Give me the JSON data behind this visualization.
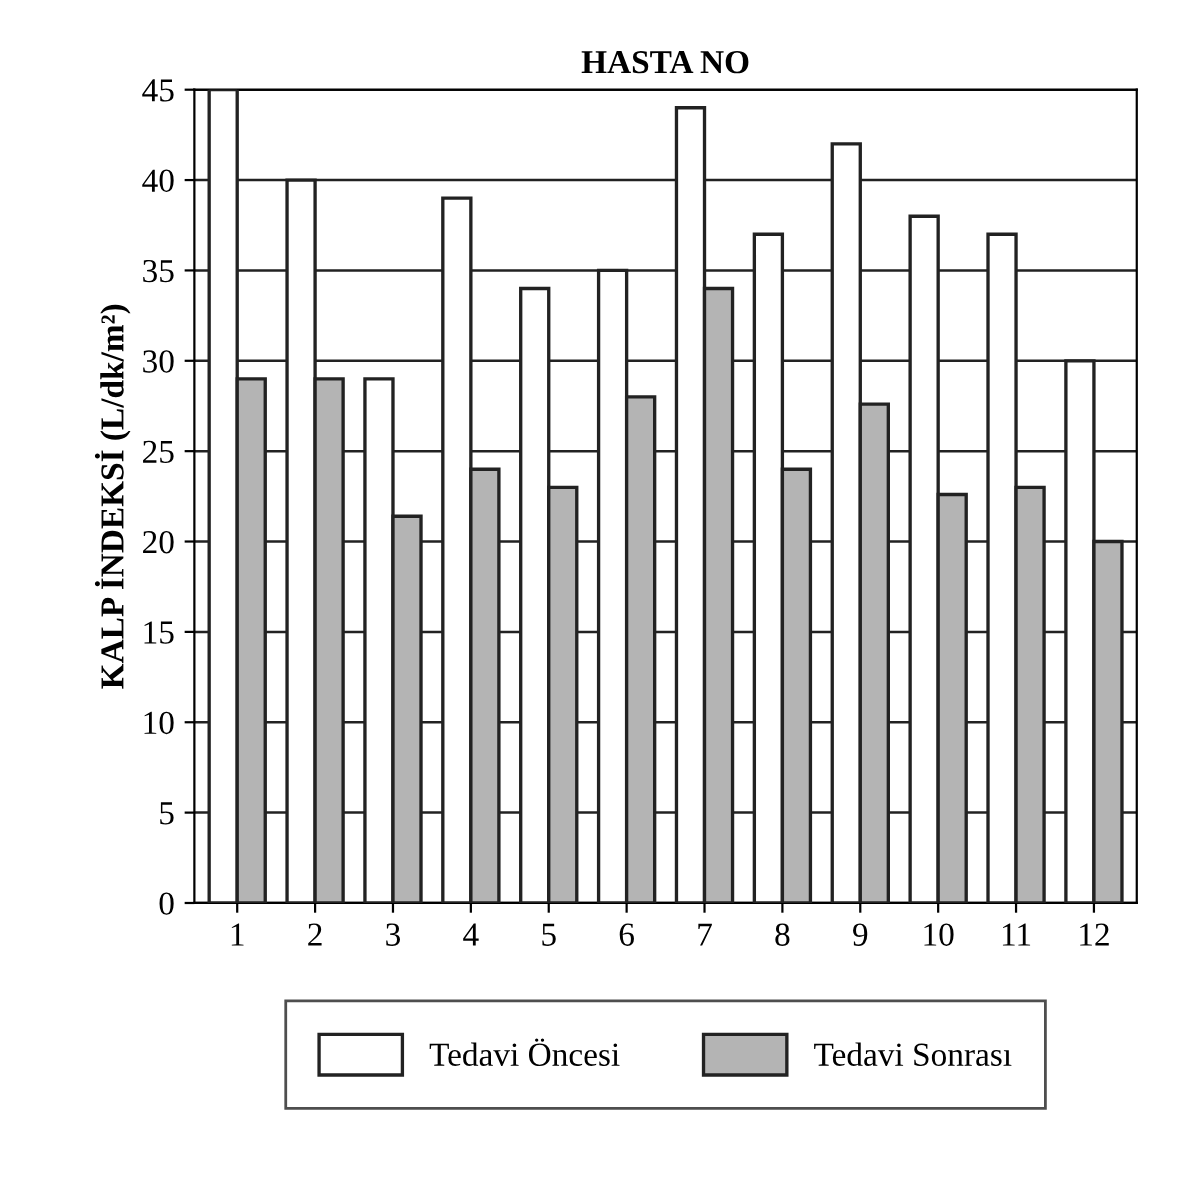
{
  "chart_data": {
    "type": "bar",
    "title": "HASTA NO",
    "ylabel": "KALP İNDEKSİ (L/dk/m²)",
    "categories": [
      "1",
      "2",
      "3",
      "4",
      "5",
      "6",
      "7",
      "8",
      "9",
      "10",
      "11",
      "12"
    ],
    "series": [
      {
        "name": "Tedavi Öncesi",
        "color": "#ffffff",
        "values": [
          45,
          40,
          29,
          39,
          34,
          35,
          44,
          37,
          42,
          38,
          37,
          30
        ]
      },
      {
        "name": "Tedavi Sonrası",
        "color": "#b4b4b4",
        "values": [
          29,
          29,
          21.4,
          24,
          23,
          28,
          34,
          24,
          27.6,
          22.6,
          23,
          20
        ]
      }
    ],
    "ylim": [
      0,
      45
    ],
    "yticks": [
      0,
      5,
      10,
      15,
      20,
      25,
      30,
      35,
      40,
      45
    ],
    "grid": "y",
    "legend": "bottom"
  }
}
